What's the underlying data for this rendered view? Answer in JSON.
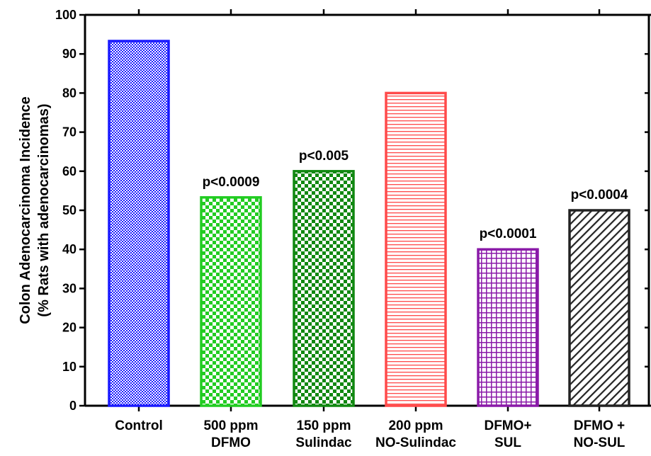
{
  "chart_data": {
    "type": "bar",
    "title": "",
    "ylabel": "Colon Adenocarcinoma Incidence",
    "ylabel_sub": "(% Rats with adenocarcinomas)",
    "xlabel": "",
    "ylim": [
      0,
      100
    ],
    "yticks": [
      0,
      10,
      20,
      30,
      40,
      50,
      60,
      70,
      80,
      90,
      100
    ],
    "grid": false,
    "categories": [
      [
        "Control"
      ],
      [
        "500 ppm",
        "DFMO"
      ],
      [
        "150 ppm",
        "Sulindac"
      ],
      [
        "200 ppm",
        "NO-Sulindac"
      ],
      [
        "DFMO+",
        "SUL"
      ],
      [
        "DFMO +",
        "NO-SUL"
      ]
    ],
    "values": [
      93.3,
      53.3,
      60,
      80,
      40,
      50
    ],
    "annotations": [
      "",
      "p<0.0009",
      "p<0.005",
      "",
      "p<0.0001",
      "p<0.0004"
    ],
    "colors": [
      "#1a1aff",
      "#22cc22",
      "#118811",
      "#ff4a4a",
      "#8a1aa8",
      "#222222"
    ],
    "patterns": [
      "fine-check",
      "check",
      "check",
      "horizontal-lines",
      "grid",
      "diagonal-lines"
    ]
  }
}
